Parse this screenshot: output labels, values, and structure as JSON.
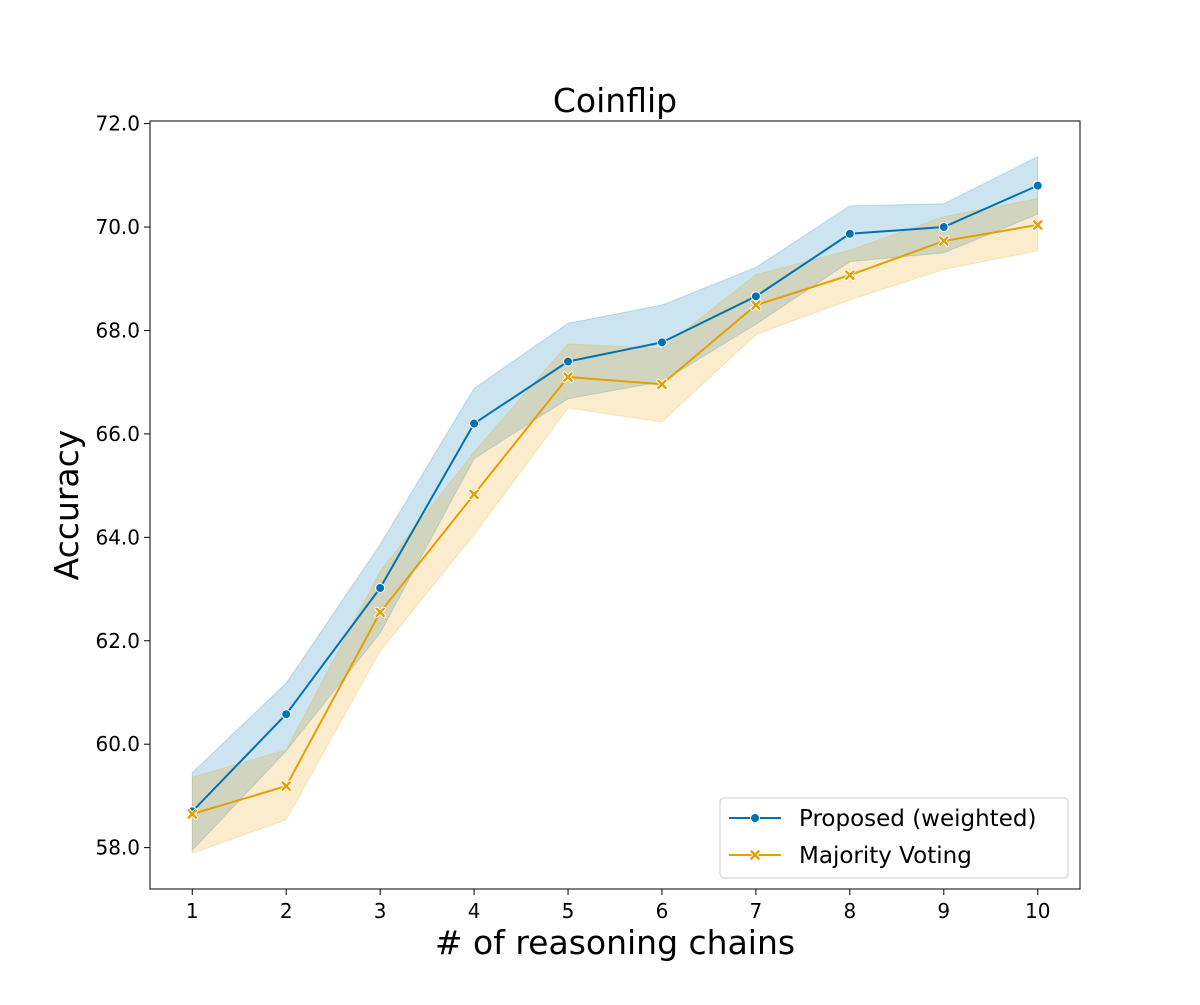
{
  "chart_data": {
    "type": "line",
    "title": "Coinflip",
    "xlabel": "# of reasoning chains",
    "ylabel": "Accuracy",
    "x": [
      1,
      2,
      3,
      4,
      5,
      6,
      7,
      8,
      9,
      10
    ],
    "xlim": [
      0.55,
      10.45
    ],
    "ylim": [
      57.2,
      72.05
    ],
    "x_ticks": [
      1,
      2,
      3,
      4,
      5,
      6,
      7,
      8,
      9,
      10
    ],
    "y_ticks": [
      58.0,
      60.0,
      62.0,
      64.0,
      66.0,
      68.0,
      70.0,
      72.0
    ],
    "grid": false,
    "legend_position": "lower right",
    "series": [
      {
        "name": "Proposed (weighted)",
        "color": "#0072b2",
        "marker": "circle",
        "values": [
          58.7,
          60.58,
          63.02,
          66.2,
          67.4,
          67.77,
          68.66,
          69.87,
          70.0,
          70.8
        ],
        "ci_low": [
          57.95,
          59.87,
          62.15,
          65.52,
          66.68,
          67.01,
          68.12,
          69.33,
          69.5,
          70.25
        ],
        "ci_high": [
          59.45,
          61.18,
          63.86,
          66.88,
          68.14,
          68.49,
          69.22,
          70.41,
          70.45,
          71.36
        ]
      },
      {
        "name": "Majority Voting",
        "color": "#e69f00",
        "marker": "x",
        "values": [
          58.65,
          59.19,
          62.55,
          64.83,
          67.1,
          66.96,
          68.49,
          69.07,
          69.73,
          70.04
        ],
        "ci_low": [
          57.89,
          58.54,
          61.8,
          64.05,
          66.5,
          66.23,
          67.92,
          68.59,
          69.18,
          69.54
        ],
        "ci_high": [
          59.36,
          59.89,
          63.34,
          65.65,
          67.74,
          67.65,
          69.08,
          69.55,
          70.2,
          70.55
        ]
      }
    ]
  }
}
